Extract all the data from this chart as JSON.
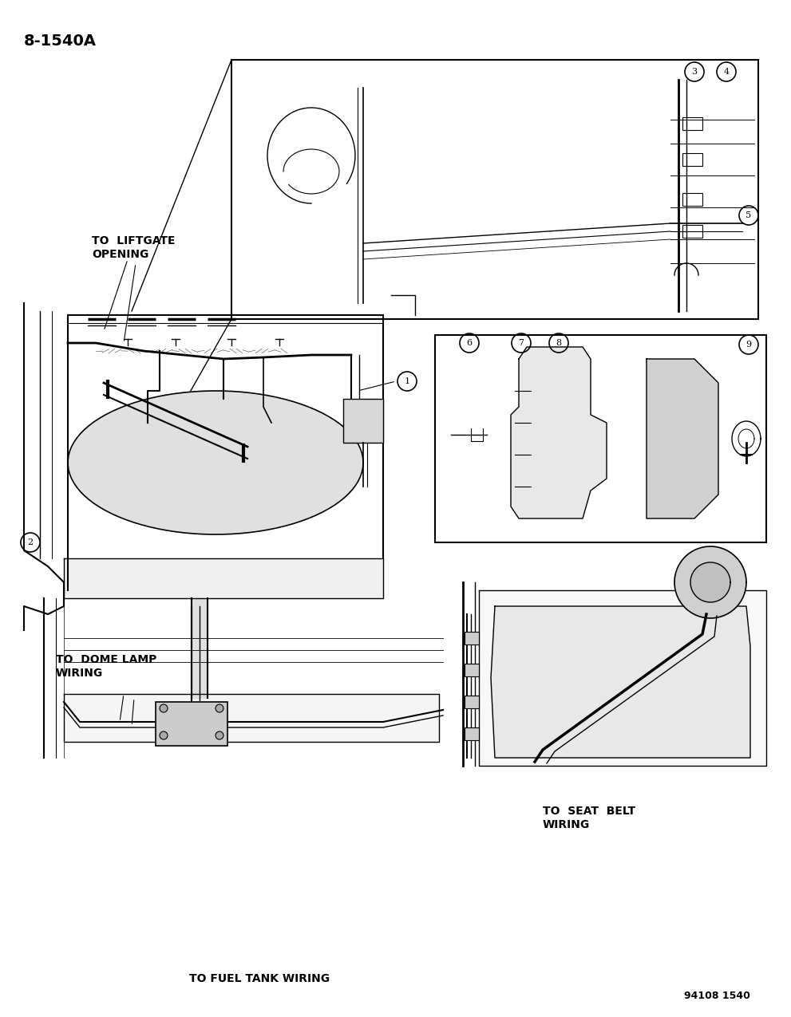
{
  "page_id": "8-1540A",
  "part_number": "94108 1540",
  "background_color": "#ffffff",
  "text_color": "#000000",
  "title_fontsize": 14,
  "label_fontsize": 9,
  "annotations": {
    "top_left": "8-1540A",
    "bottom_right": "94108  1540",
    "liftgate": "TO  LIFTGATE\nOPENING",
    "dome_lamp": "TO  DOME LAMP\nWIRING",
    "fuel_tank": "TO FUEL TANK WIRING",
    "seat_belt": "TO  SEAT  BELT\nWIRING"
  },
  "callout_numbers": [
    1,
    2,
    3,
    4,
    5,
    6,
    7,
    8,
    9
  ],
  "fig_width": 9.91,
  "fig_height": 12.75
}
